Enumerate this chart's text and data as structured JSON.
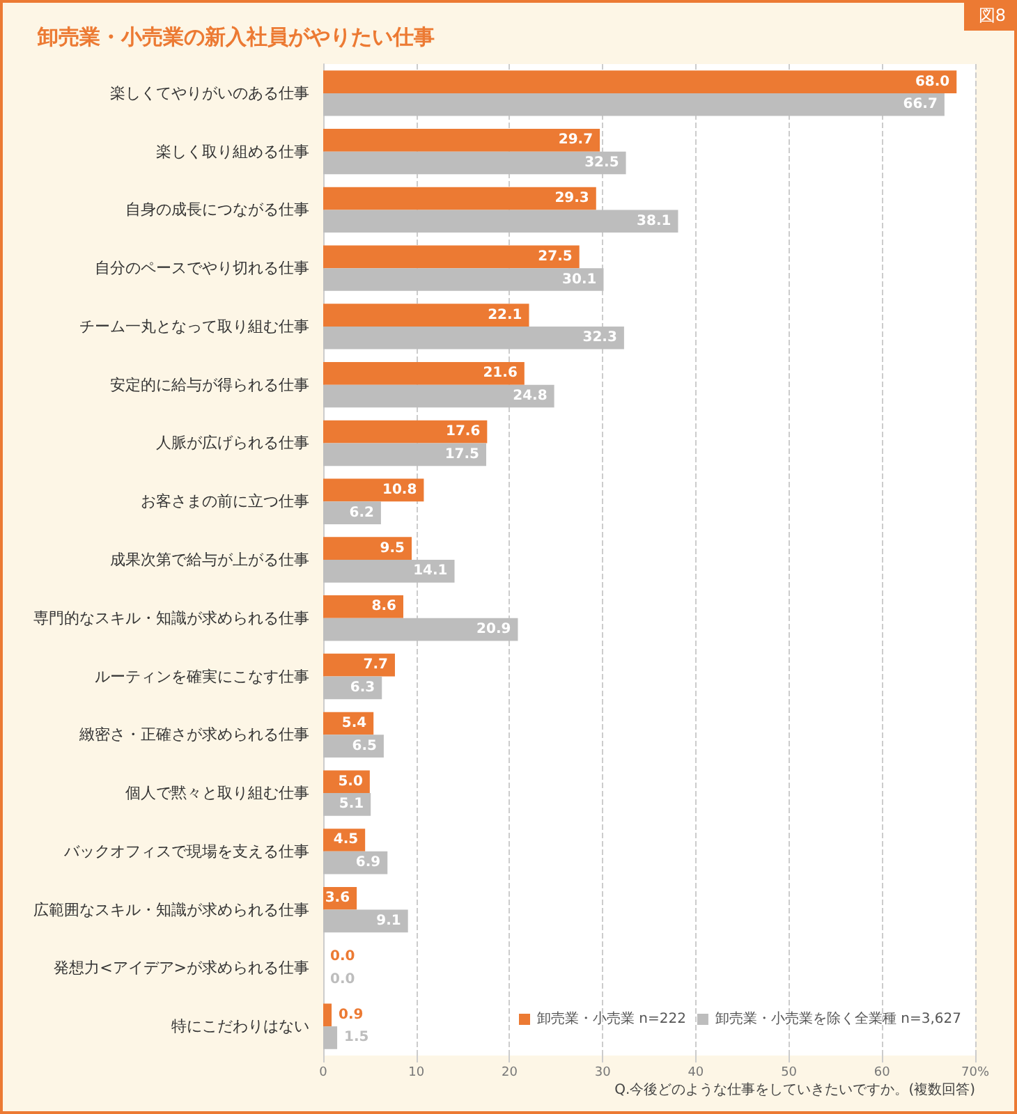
{
  "chart_data": {
    "type": "bar",
    "orientation": "horizontal",
    "title": "卸売業・小売業の新入社員がやりたい仕事",
    "categories": [
      "楽しくてやりがいのある仕事",
      "楽しく取り組める仕事",
      "自身の成長につながる仕事",
      "自分のペースでやり切れる仕事",
      "チーム一丸となって取り組む仕事",
      "安定的に給与が得られる仕事",
      "人脈が広げられる仕事",
      "お客さまの前に立つ仕事",
      "成果次第で給与が上がる仕事",
      "専門的なスキル・知識が求められる仕事",
      "ルーティンを確実にこなす仕事",
      "緻密さ・正確さが求められる仕事",
      "個人で黙々と取り組む仕事",
      "バックオフィスで現場を支える仕事",
      "広範囲なスキル・知識が求められる仕事",
      "発想力<アイデア>が求められる仕事",
      "特にこだわりはない"
    ],
    "series": [
      {
        "name": "卸売業・小売業 n=222",
        "color": "#ec7a33",
        "values": [
          68.0,
          29.7,
          29.3,
          27.5,
          22.1,
          21.6,
          17.6,
          10.8,
          9.5,
          8.6,
          7.7,
          5.4,
          5.0,
          4.5,
          3.6,
          0.0,
          0.9
        ],
        "value_labels": [
          "68.0",
          "29.7",
          "29.3",
          "27.5",
          "22.1",
          "21.6",
          "17.6",
          "10.8",
          "9.5",
          "8.6",
          "7.7",
          "5.4",
          "5.0",
          "4.5",
          "3.6",
          "0.0",
          "0.9"
        ]
      },
      {
        "name": "卸売業・小売業を除く全業種 n=3,627",
        "color": "#bdbdbd",
        "values": [
          66.7,
          32.5,
          38.1,
          30.1,
          32.3,
          24.8,
          17.5,
          6.2,
          14.1,
          20.9,
          6.3,
          6.5,
          5.1,
          6.9,
          9.1,
          0.0,
          1.5
        ],
        "value_labels": [
          "66.7",
          "32.5",
          "38.1",
          "30.1",
          "32.3",
          "24.8",
          "17.5",
          "6.2",
          "14.1",
          "20.9",
          "6.3",
          "6.5",
          "5.1",
          "6.9",
          "9.1",
          "0.0",
          "1.5"
        ]
      }
    ],
    "xlim": [
      0,
      70
    ],
    "xticks": [
      0,
      10,
      20,
      30,
      40,
      50,
      60,
      {
        "value": 70,
        "label": "70%"
      }
    ],
    "grid": "x",
    "legend": "bottom right",
    "annotations": [
      "図8",
      "Q.今後どのような仕事をしていきたいですか。(複数回答)"
    ]
  }
}
